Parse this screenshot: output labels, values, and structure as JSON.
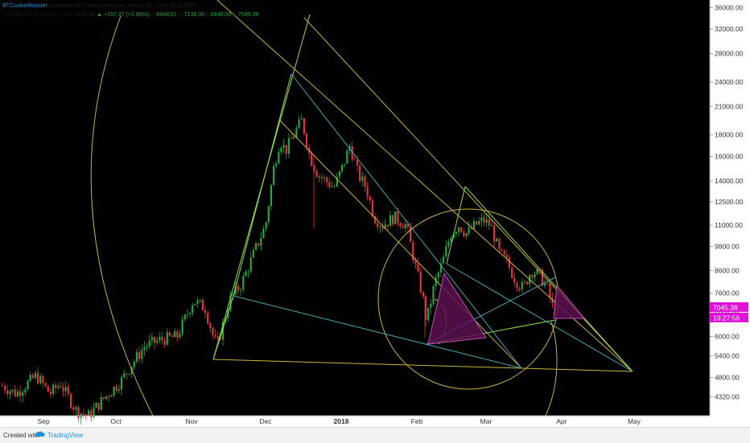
{
  "header": {
    "author": "BTCookieMonster",
    "published": "published on TradingView.com, March 30, 2018 23:32 EST",
    "symbol": "COINBASE:BTCUSD, 1440",
    "last": "7045.38",
    "change": "▲ +197.37 (+2.88%)",
    "o_label": "O:",
    "o": "6848.01",
    "h_label": "H:",
    "h": "7138.00",
    "l_label": "L:",
    "l": "6848.00",
    "c_label": "C:",
    "c": "7045.38"
  },
  "footer": {
    "created": "Created with",
    "brand": "TradingView"
  },
  "colors": {
    "background": "#000000",
    "up": "#26a641",
    "down": "#e0333d",
    "yellow": "#c8b43c",
    "green": "#8ee04a",
    "cyan": "#3fa7b0",
    "triangle_fill": "#5a1050",
    "triangle_stroke": "#c050b0",
    "price_tag": "#e010d8"
  },
  "chart_data": {
    "type": "candlestick",
    "scale": "log",
    "ylim": [
      3900,
      37500
    ],
    "y_ticks": [
      "4320.00",
      "4800.00",
      "5400.00",
      "6000.00",
      "6800.00",
      "7600.00",
      "8600.00",
      "9800.00",
      "11000.00",
      "12500.00",
      "14000.00",
      "16000.00",
      "18000.00",
      "21000.00",
      "24000.00",
      "28000.00",
      "32000.00",
      "36000.00"
    ],
    "x_ticks": [
      "Sep",
      "Oct",
      "Nov",
      "Dec",
      "2018",
      "Feb",
      "Mar",
      "Apr",
      "May"
    ],
    "x_ticks_bold": [
      false,
      false,
      false,
      false,
      true,
      false,
      false,
      false,
      false
    ],
    "price_label": "7045.38",
    "countdown_label": "19:27:56"
  }
}
